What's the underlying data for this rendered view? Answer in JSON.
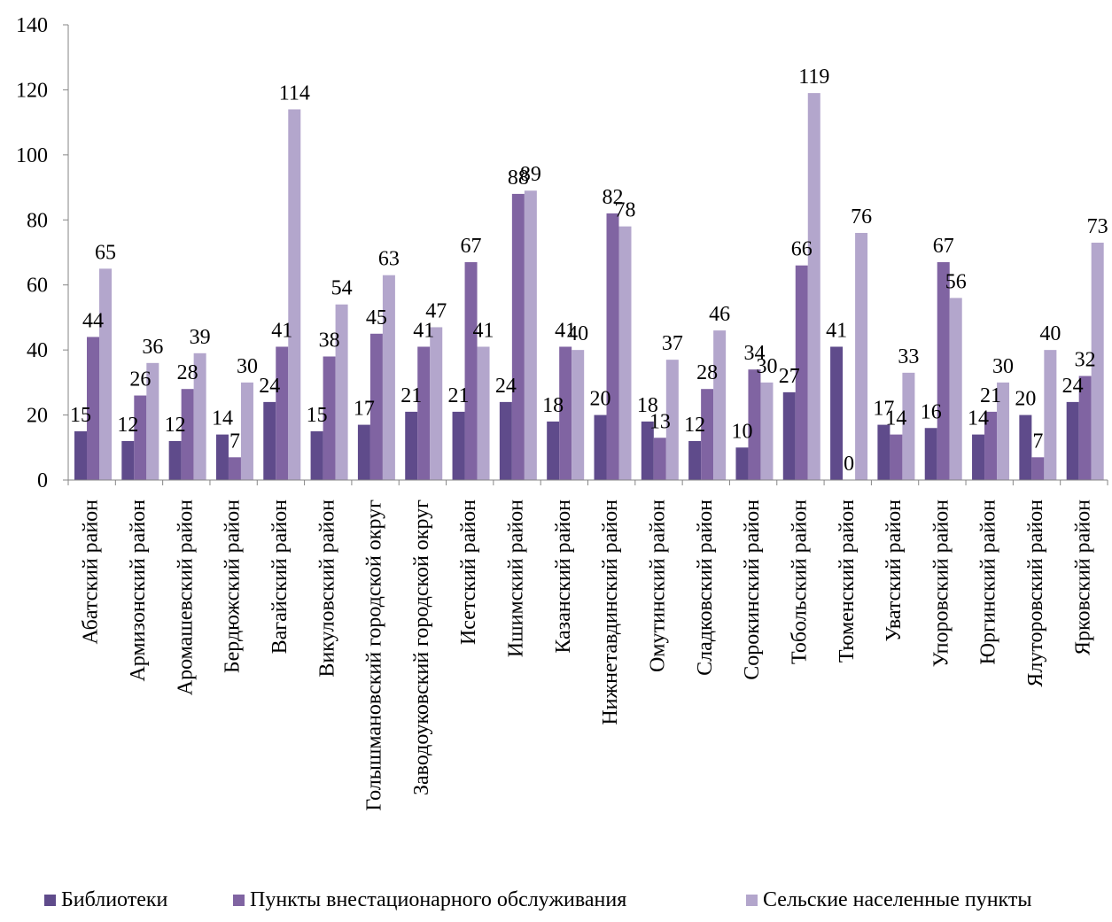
{
  "chart_data": {
    "type": "bar",
    "categories": [
      "Абатский район",
      "Армизонский район",
      "Аромашевский район",
      "Бердюжский район",
      "Вагайский район",
      "Викуловский район",
      "Голышмановский городской округ",
      "Заводоуковский городской округ",
      "Исетский район",
      "Ишимский район",
      "Казанский район",
      "Нижнетавдинский район",
      "Омутинский район",
      "Сладковский район",
      "Сорокинский район",
      "Тобольский район",
      "Тюменский район",
      "Уватский район",
      "Упоровский район",
      "Юргинский район",
      "Ялуторовский район",
      "Ярковский район"
    ],
    "series": [
      {
        "name": "Библиотеки",
        "color": "#5f4b8b",
        "values": [
          15,
          12,
          12,
          14,
          24,
          15,
          17,
          21,
          21,
          24,
          18,
          20,
          18,
          12,
          10,
          27,
          41,
          17,
          16,
          14,
          20,
          24
        ]
      },
      {
        "name": "Пункты внестационарного обслуживания",
        "color": "#8064a2",
        "values": [
          44,
          26,
          28,
          7,
          41,
          38,
          45,
          41,
          67,
          88,
          41,
          82,
          13,
          28,
          34,
          66,
          0,
          14,
          67,
          21,
          7,
          32
        ]
      },
      {
        "name": "Сельские населенные пункты",
        "color": "#b3a6cc",
        "values": [
          65,
          36,
          39,
          30,
          114,
          54,
          63,
          47,
          41,
          89,
          40,
          78,
          37,
          46,
          30,
          119,
          76,
          33,
          56,
          30,
          40,
          73
        ]
      }
    ],
    "ylim": [
      0,
      140
    ],
    "yticks": [
      0,
      20,
      40,
      60,
      80,
      100,
      120,
      140
    ],
    "grid": false,
    "data_labels": true,
    "legend_position": "bottom",
    "title": "",
    "xlabel": "",
    "ylabel": ""
  }
}
